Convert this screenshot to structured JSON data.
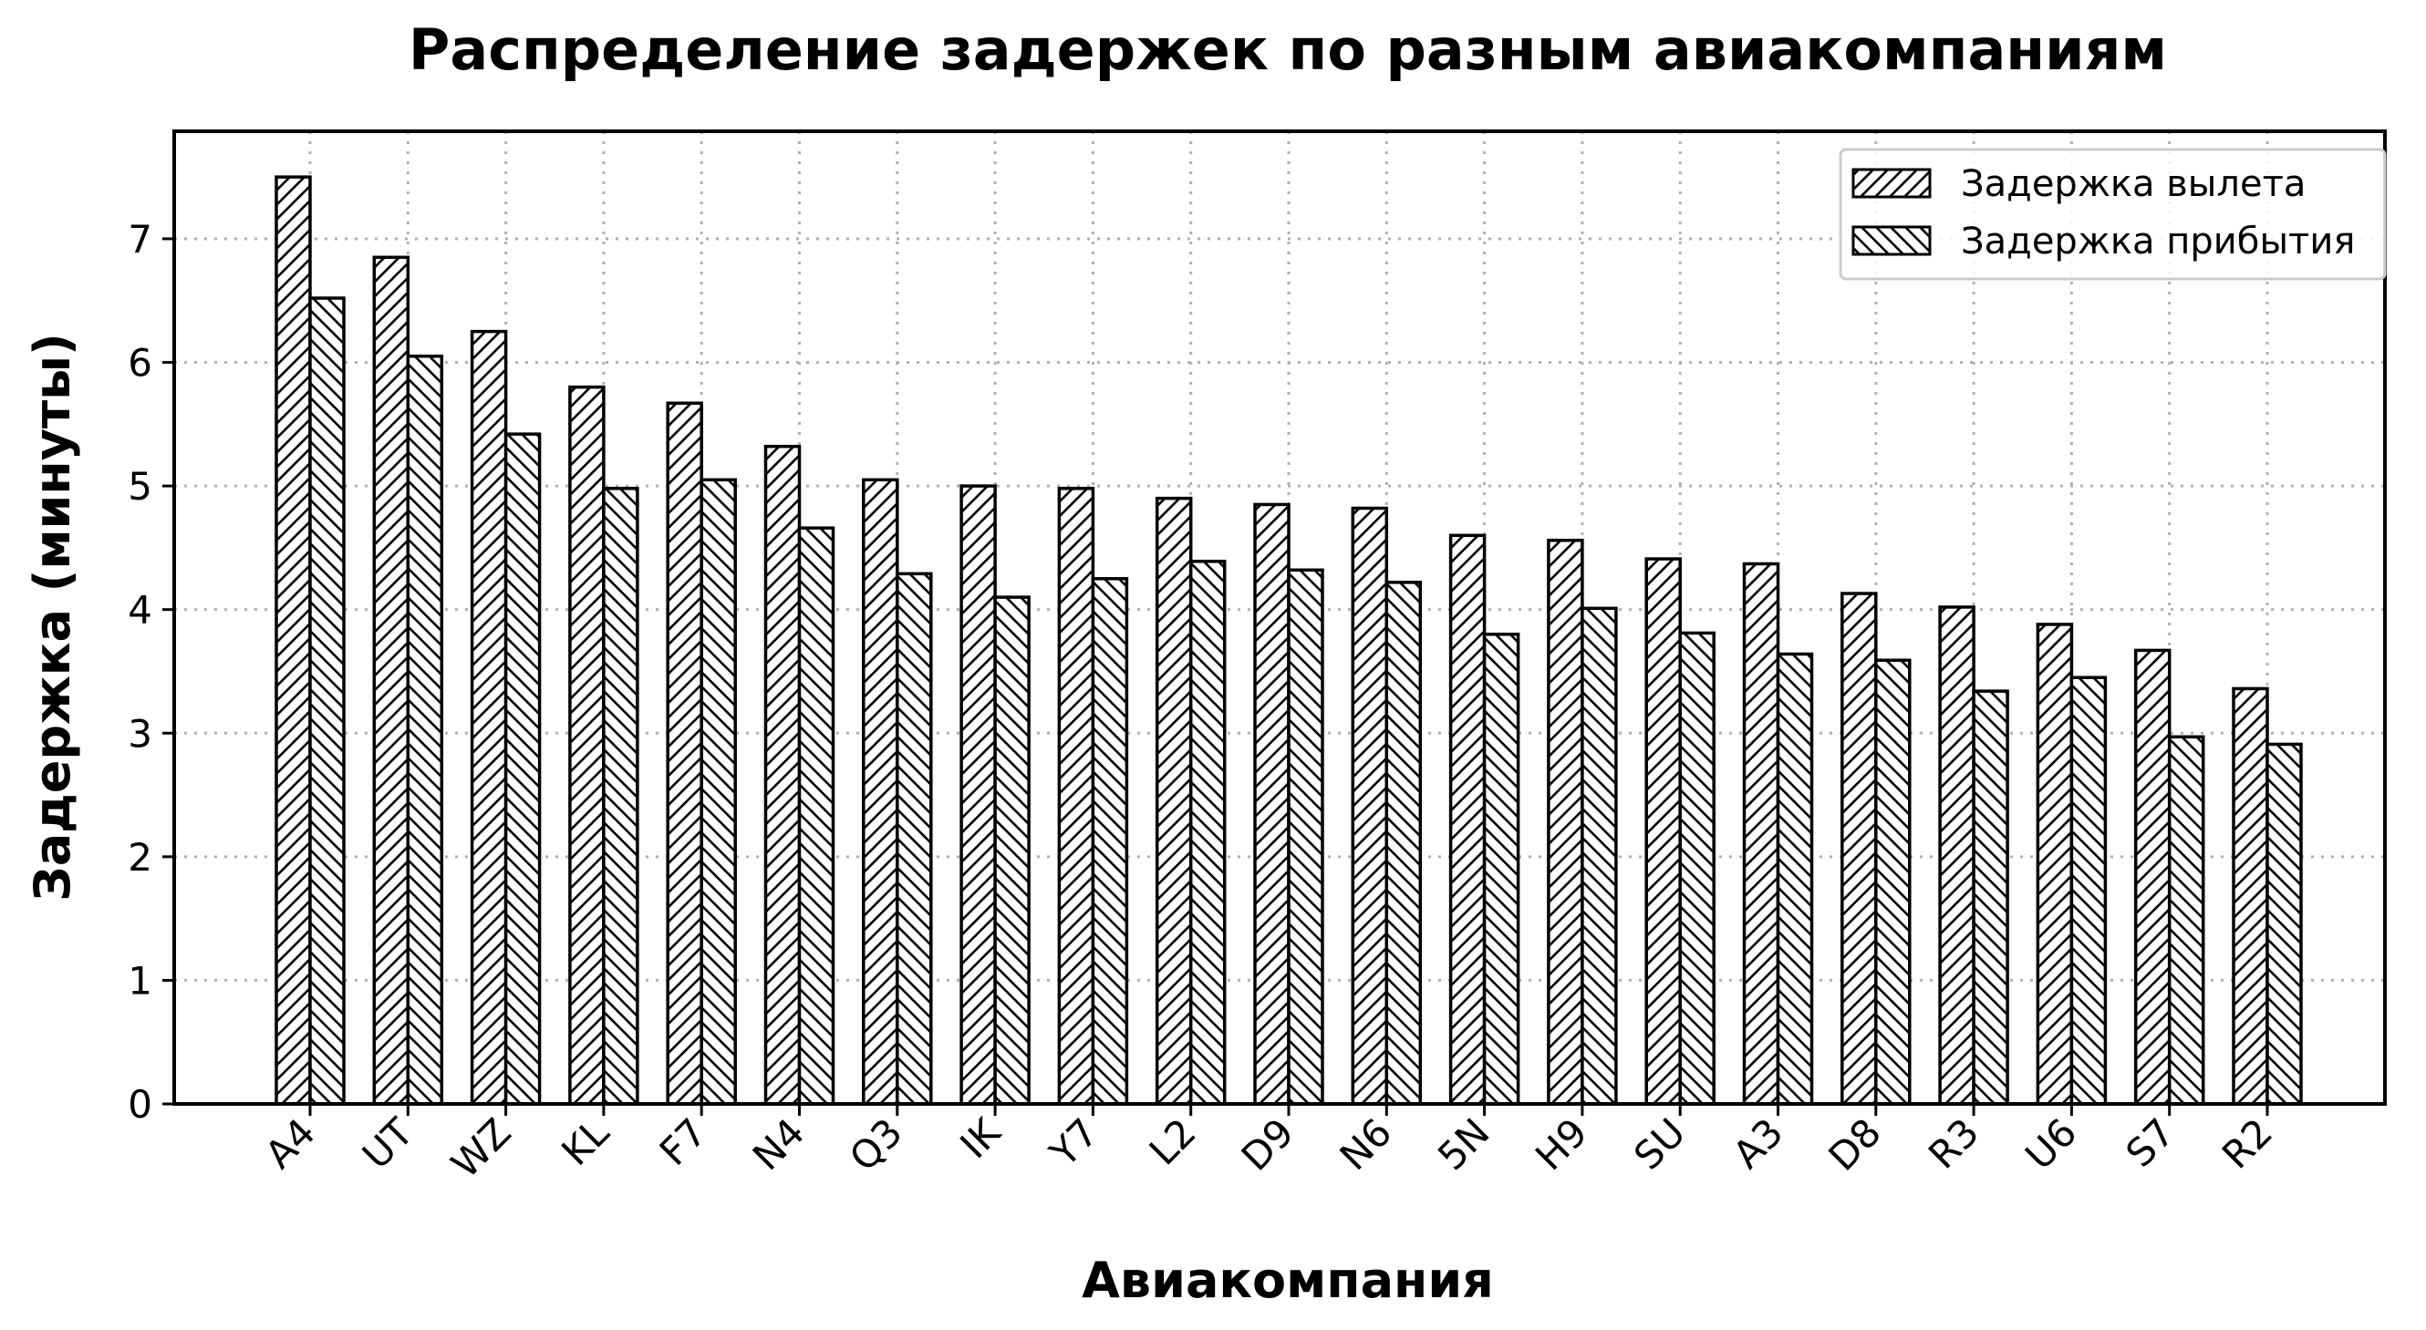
{
  "chart_data": {
    "type": "bar",
    "title": "Распределение задержек по разным авиакомпаниям",
    "xlabel": "Авиакомпания",
    "ylabel": "Задержка (минуты)",
    "categories": [
      "A4",
      "UT",
      "WZ",
      "KL",
      "F7",
      "N4",
      "Q3",
      "IK",
      "Y7",
      "L2",
      "D9",
      "N6",
      "5N",
      "H9",
      "SU",
      "A3",
      "D8",
      "R3",
      "U6",
      "S7",
      "R2"
    ],
    "series": [
      {
        "name": "Задержка вылета",
        "hatch": "forward",
        "values": [
          7.5,
          6.85,
          6.25,
          5.8,
          5.67,
          5.32,
          5.05,
          5.0,
          4.98,
          4.9,
          4.85,
          4.82,
          4.6,
          4.56,
          4.41,
          4.37,
          4.13,
          4.02,
          3.88,
          3.67,
          3.36
        ]
      },
      {
        "name": "Задержка прибытия",
        "hatch": "backward",
        "values": [
          6.52,
          6.05,
          5.42,
          4.98,
          5.05,
          4.66,
          4.29,
          4.1,
          4.25,
          4.39,
          4.32,
          4.22,
          3.8,
          4.01,
          3.81,
          3.64,
          3.59,
          3.34,
          3.45,
          2.97,
          2.91
        ]
      }
    ],
    "yticks": [
      0,
      1,
      2,
      3,
      4,
      5,
      6,
      7
    ],
    "ylim": [
      0,
      7.87
    ],
    "grid": true,
    "legend_position": "top-right",
    "colors": {
      "bar_fill": "#ffffff",
      "bar_edge": "#000000",
      "grid": "#b0b0b0"
    }
  }
}
